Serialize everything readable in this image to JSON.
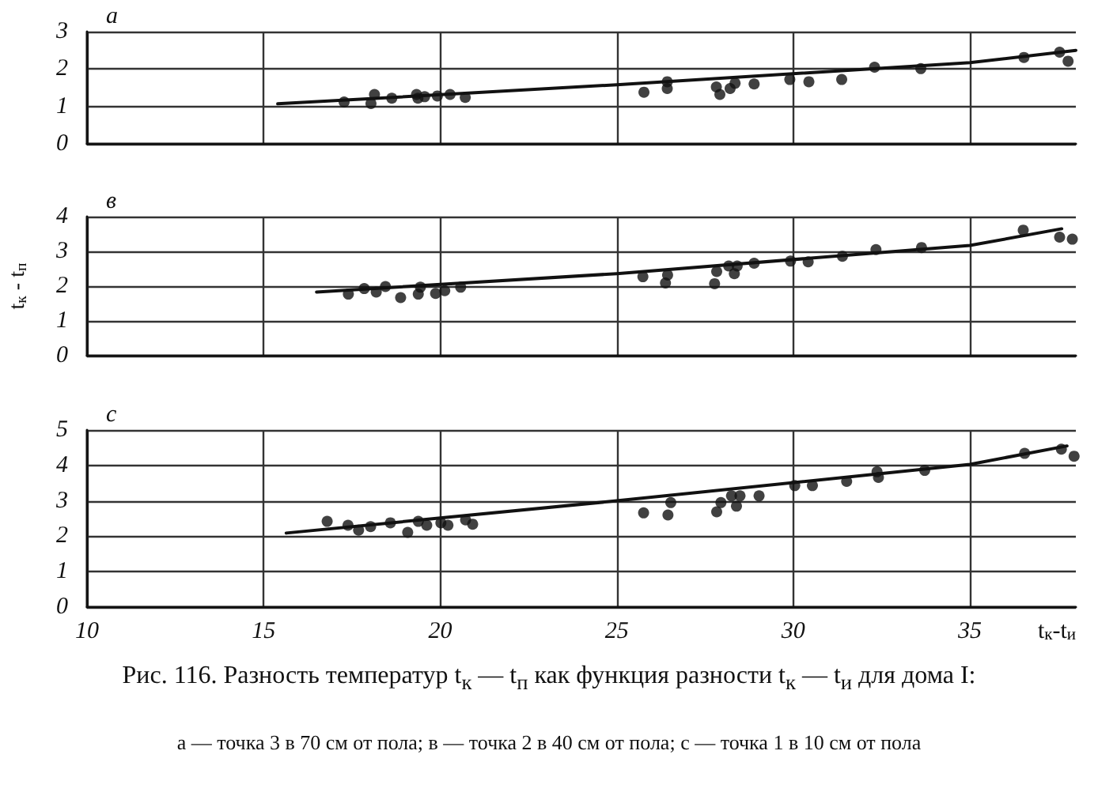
{
  "chart_data": [
    {
      "type": "scatter",
      "title": "а",
      "xlim": [
        10,
        38
      ],
      "xticks": [
        10,
        15,
        20,
        25,
        30,
        35
      ],
      "ylim": [
        0,
        3
      ],
      "yticks": [
        0,
        1,
        2,
        3
      ],
      "grid": true,
      "tick_labels": "y",
      "marker": "circle",
      "series": [
        {
          "color": "#111111",
          "x": [
            17.28,
            18.04,
            18.14,
            18.63,
            19.33,
            19.37,
            19.56,
            19.92,
            20.28,
            20.71,
            25.77,
            26.43,
            26.43,
            27.82,
            27.92,
            28.21,
            28.35,
            28.89,
            29.9,
            30.44,
            31.37,
            32.3,
            33.61,
            36.53,
            37.54,
            37.78
          ],
          "values": [
            1.12,
            1.08,
            1.32,
            1.22,
            1.32,
            1.22,
            1.26,
            1.28,
            1.32,
            1.24,
            1.38,
            1.48,
            1.66,
            1.52,
            1.32,
            1.48,
            1.62,
            1.6,
            1.72,
            1.66,
            1.72,
            2.05,
            2.01,
            2.31,
            2.45,
            2.21
          ]
        },
        {
          "type": "line",
          "marker": "none",
          "color": "#111111",
          "x": [
            15.4,
            25,
            35,
            38
          ],
          "values": [
            1.07,
            1.58,
            2.17,
            2.5
          ]
        }
      ]
    },
    {
      "type": "scatter",
      "title": "в",
      "ylabel": "t$_{к}$ - t$_{п}$",
      "xlim": [
        10,
        38
      ],
      "xticks": [
        10,
        15,
        20,
        25,
        30,
        35
      ],
      "ylim": [
        0,
        4
      ],
      "yticks": [
        0,
        1,
        2,
        3,
        4
      ],
      "grid": true,
      "tick_labels": "y",
      "marker": "circle",
      "series": [
        {
          "color": "#111111",
          "x": [
            17.4,
            17.85,
            18.19,
            18.45,
            18.88,
            19.38,
            19.44,
            19.87,
            20.13,
            20.58,
            25.74,
            26.38,
            26.44,
            27.77,
            27.83,
            28.17,
            28.33,
            28.41,
            28.89,
            29.92,
            30.42,
            31.39,
            32.34,
            33.63,
            36.51,
            37.54,
            37.9
          ],
          "values": [
            1.77,
            1.93,
            1.83,
            1.99,
            1.67,
            1.77,
            1.97,
            1.79,
            1.87,
            1.97,
            2.27,
            2.09,
            2.32,
            2.07,
            2.42,
            2.58,
            2.36,
            2.58,
            2.66,
            2.72,
            2.7,
            2.86,
            3.05,
            3.11,
            3.61,
            3.41,
            3.35
          ]
        },
        {
          "type": "line",
          "marker": "none",
          "color": "#111111",
          "x": [
            16.5,
            25,
            35,
            37.6
          ],
          "values": [
            1.83,
            2.36,
            3.17,
            3.65
          ]
        }
      ]
    },
    {
      "type": "scatter",
      "title": "с",
      "xlabel": "t$_{к}$-t$_{и}$",
      "xlim": [
        10,
        38
      ],
      "xticks": [
        10,
        15,
        20,
        25,
        30,
        35
      ],
      "ylim": [
        0,
        5
      ],
      "yticks": [
        0,
        1,
        2,
        3,
        4,
        5
      ],
      "grid": true,
      "marker": "circle",
      "annotations": [
        "Рис. 116. Разность температур t$_{к}$ — t$_{п}$ как функция разности t$_{к}$ — t$_{и}$ для дома I:",
        "а — точка 3 в 70 см от пола; в — точка 2 в 40 см от пола; с — точка 1 в 10 см от пола"
      ],
      "series": [
        {
          "color": "#111111",
          "x": [
            16.8,
            17.39,
            17.69,
            18.03,
            18.59,
            19.08,
            19.38,
            19.62,
            20.02,
            20.22,
            20.72,
            20.92,
            25.76,
            26.45,
            26.53,
            27.83,
            27.95,
            28.25,
            28.39,
            28.49,
            29.03,
            30.04,
            30.54,
            31.51,
            32.37,
            32.41,
            33.72,
            36.55,
            37.59,
            37.95
          ],
          "values": [
            2.42,
            2.31,
            2.17,
            2.27,
            2.38,
            2.11,
            2.42,
            2.31,
            2.38,
            2.31,
            2.46,
            2.34,
            2.66,
            2.6,
            2.95,
            2.69,
            2.95,
            3.14,
            2.85,
            3.14,
            3.14,
            3.43,
            3.43,
            3.55,
            3.82,
            3.66,
            3.86,
            4.34,
            4.46,
            4.26
          ]
        },
        {
          "type": "line",
          "marker": "none",
          "color": "#111111",
          "x": [
            15.64,
            25,
            35,
            37.75
          ],
          "values": [
            2.09,
            3.0,
            4.03,
            4.55
          ]
        }
      ]
    }
  ]
}
